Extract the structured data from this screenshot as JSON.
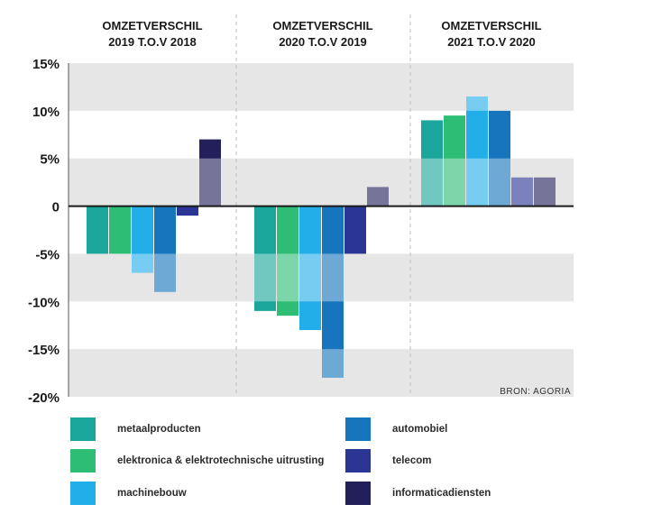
{
  "colors": {
    "metaalproducten": "#1aa69a",
    "elektronica": "#2ebd74",
    "machinebouw": "#22aee8",
    "automobiel": "#1675bd",
    "telecom": "#2b3593",
    "informaticadiensten": "#231f5a",
    "band": "#e6e6e6",
    "axis": "#1a1a1a"
  },
  "legend": [
    {
      "key": "metaalproducten",
      "label": "metaalproducten"
    },
    {
      "key": "elektronica",
      "label": "elektronica & elektrotechnische uitrusting"
    },
    {
      "key": "machinebouw",
      "label": "machinebouw"
    },
    {
      "key": "automobiel",
      "label": "automobiel"
    },
    {
      "key": "telecom",
      "label": "telecom"
    },
    {
      "key": "informaticadiensten",
      "label": "informaticadiensten"
    }
  ],
  "source": "BRON: AGORIA",
  "chart_data": {
    "type": "bar",
    "ylim": [
      -20,
      15
    ],
    "yticks": [
      {
        "value": 15,
        "label": "15%"
      },
      {
        "value": 10,
        "label": "10%"
      },
      {
        "value": 5,
        "label": "5%"
      },
      {
        "value": 0,
        "label": "0"
      },
      {
        "value": -5,
        "label": "-5%"
      },
      {
        "value": -10,
        "label": "-10%"
      },
      {
        "value": -15,
        "label": "-15%"
      },
      {
        "value": -20,
        "label": "-20%"
      }
    ],
    "grid": "alternating horizontal bands",
    "panels": [
      {
        "title_line1": "OMZETVERSCHIL",
        "title_line2": "2019 T.O.V 2018",
        "values": {
          "metaalproducten": -5,
          "elektronica": -5,
          "machinebouw": -7,
          "automobiel": -9,
          "telecom": -1,
          "informaticadiensten": 7
        }
      },
      {
        "title_line1": "OMZETVERSCHIL",
        "title_line2": "2020 T.O.V 2019",
        "values": {
          "metaalproducten": -11,
          "elektronica": -11.5,
          "machinebouw": -13,
          "automobiel": -18,
          "telecom": -5,
          "informaticadiensten": 2
        }
      },
      {
        "title_line1": "OMZETVERSCHIL",
        "title_line2": "2021 T.O.V 2020",
        "values": {
          "metaalproducten": 9,
          "elektronica": 9.5,
          "machinebouw": 11.5,
          "automobiel": 10,
          "telecom": 3,
          "informaticadiensten": 3
        }
      }
    ]
  }
}
